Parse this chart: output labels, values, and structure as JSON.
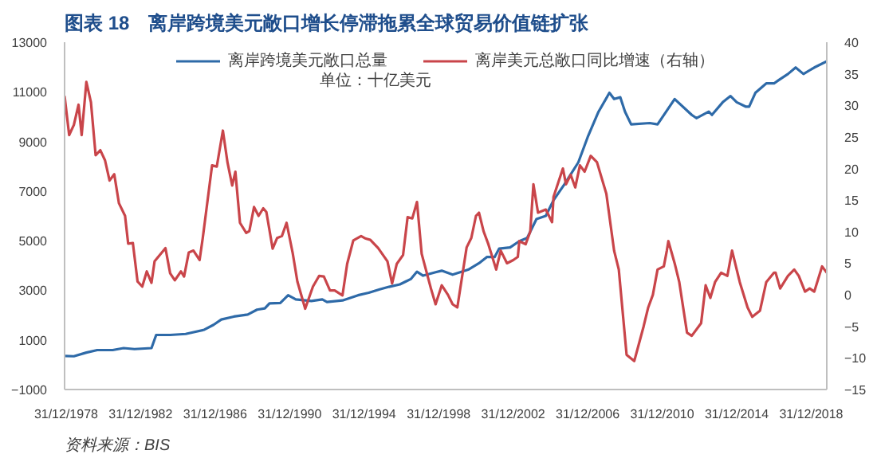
{
  "chart_data": {
    "type": "line",
    "title": "图表 18　离岸跨境美元敞口增长停滞拖累全球贸易价值链扩张",
    "annotations": [
      "单位：十亿美元",
      "资料来源：BIS"
    ],
    "xlim": [
      "1978-12",
      "2019-11"
    ],
    "xticks": [
      {
        "value": "1978-12-31",
        "label": "31/12/1978"
      },
      {
        "value": "1982-12-31",
        "label": "31/12/1982"
      },
      {
        "value": "1986-12-31",
        "label": "31/12/1986"
      },
      {
        "value": "1990-12-31",
        "label": "31/12/1990"
      },
      {
        "value": "1994-12-31",
        "label": "31/12/1994"
      },
      {
        "value": "1998-12-31",
        "label": "31/12/1998"
      },
      {
        "value": "2002-12-31",
        "label": "31/12/2002"
      },
      {
        "value": "2006-12-31",
        "label": "31/12/2006"
      },
      {
        "value": "2010-12-31",
        "label": "31/12/2010"
      },
      {
        "value": "2014-12-31",
        "label": "31/12/2014"
      },
      {
        "value": "2018-12-31",
        "label": "31/12/2018"
      }
    ],
    "ylim": [
      -1000,
      13000
    ],
    "yticks": [
      -1000,
      1000,
      3000,
      5000,
      7000,
      9000,
      11000,
      13000
    ],
    "y2lim": [
      -15,
      40
    ],
    "y2ticks": [
      -15,
      -10,
      -5,
      0,
      5,
      10,
      15,
      20,
      25,
      30,
      35,
      40
    ],
    "grid": false,
    "legend": "top",
    "series": [
      {
        "name": "离岸跨境美元敞口总量",
        "color": "#2e6aa8",
        "x": [
          "1978-12",
          "1979-06",
          "1980-02",
          "1980-09",
          "1981-07",
          "1982-02",
          "1982-09",
          "1983-08",
          "1983-11",
          "1984-08",
          "1985-06",
          "1986-06",
          "1986-12",
          "1987-05",
          "1988-01",
          "1988-10",
          "1989-04",
          "1989-09",
          "1989-12",
          "1990-07",
          "1990-12",
          "1991-05",
          "1992-03",
          "1992-10",
          "1993-01",
          "1993-11",
          "1994-09",
          "1995-04",
          "1995-11",
          "1996-05",
          "1996-12",
          "1997-07",
          "1997-11",
          "1998-03",
          "1998-11",
          "1999-03",
          "1999-10",
          "2000-08",
          "2001-03",
          "2001-08",
          "2002-01",
          "2002-04",
          "2002-11",
          "2003-05",
          "2003-10",
          "2004-04",
          "2004-10",
          "2005-03",
          "2005-10",
          "2006-07",
          "2007-01",
          "2007-08",
          "2008-03",
          "2008-06",
          "2008-10",
          "2009-01",
          "2009-05",
          "2010-05",
          "2010-10",
          "2011-09",
          "2012-08",
          "2012-11",
          "2013-07",
          "2013-09",
          "2014-04",
          "2014-09",
          "2015-01",
          "2015-07",
          "2015-09",
          "2016-01",
          "2016-08",
          "2017-01",
          "2017-04",
          "2017-10",
          "2018-03",
          "2018-08",
          "2019-03",
          "2019-11"
        ],
        "values": [
          350,
          340,
          490,
          590,
          590,
          670,
          630,
          670,
          1200,
          1200,
          1240,
          1410,
          1610,
          1820,
          1940,
          2020,
          2220,
          2270,
          2470,
          2490,
          2800,
          2630,
          2570,
          2630,
          2530,
          2590,
          2800,
          2900,
          3040,
          3140,
          3240,
          3450,
          3750,
          3590,
          3730,
          3790,
          3630,
          3830,
          4090,
          4340,
          4340,
          4680,
          4730,
          4980,
          5110,
          5870,
          6000,
          6630,
          7270,
          8160,
          9180,
          10200,
          10960,
          10710,
          10780,
          10200,
          9690,
          9740,
          9690,
          10710,
          10070,
          9940,
          10200,
          10070,
          10580,
          10830,
          10580,
          10400,
          10400,
          10960,
          11340,
          11340,
          11470,
          11720,
          11980,
          11720,
          11980,
          12230
        ]
      },
      {
        "name": "离岸美元总敞口同比增速（右轴）",
        "color": "#c9454a",
        "axis": "y2",
        "x": [
          "1978-12",
          "1979-03",
          "1979-06",
          "1979-09",
          "1979-11",
          "1980-02",
          "1980-05",
          "1980-08",
          "1980-11",
          "1981-02",
          "1981-05",
          "1981-08",
          "1981-11",
          "1982-03",
          "1982-05",
          "1982-08",
          "1982-11",
          "1983-02",
          "1983-05",
          "1983-08",
          "1983-10",
          "1984-02",
          "1984-05",
          "1984-08",
          "1984-11",
          "1985-03",
          "1985-05",
          "1985-08",
          "1985-11",
          "1986-03",
          "1986-05",
          "1986-11",
          "1987-02",
          "1987-06",
          "1987-09",
          "1987-12",
          "1988-02",
          "1988-05",
          "1988-09",
          "1988-11",
          "1989-02",
          "1989-05",
          "1989-08",
          "1989-10",
          "1990-02",
          "1990-05",
          "1990-08",
          "1990-11",
          "1991-03",
          "1991-06",
          "1991-11",
          "1992-04",
          "1992-08",
          "1992-11",
          "1993-03",
          "1993-06",
          "1993-11",
          "1994-02",
          "1994-06",
          "1994-11",
          "1995-02",
          "1995-05",
          "1995-10",
          "1996-04",
          "1996-07",
          "1996-10",
          "1997-02",
          "1997-05",
          "1997-08",
          "1997-11",
          "1998-02",
          "1998-08",
          "1998-11",
          "1999-03",
          "1999-07",
          "1999-10",
          "2000-01",
          "2000-07",
          "2000-10",
          "2001-01",
          "2001-03",
          "2001-06",
          "2001-09",
          "2002-02",
          "2002-05",
          "2002-09",
          "2003-01",
          "2003-04",
          "2003-05",
          "2003-09",
          "2003-12",
          "2004-02",
          "2004-05",
          "2004-10",
          "2005-02",
          "2005-03",
          "2005-09",
          "2005-11",
          "2006-02",
          "2006-05",
          "2006-08",
          "2006-11",
          "2007-03",
          "2007-07",
          "2008-01",
          "2008-06",
          "2008-09",
          "2009-02",
          "2009-07",
          "2010-01",
          "2010-04",
          "2010-07",
          "2010-10",
          "2011-02",
          "2011-04",
          "2011-05",
          "2011-09",
          "2011-12",
          "2012-05",
          "2012-08",
          "2013-02",
          "2013-05",
          "2013-08",
          "2013-11",
          "2014-03",
          "2014-07",
          "2014-10",
          "2015-03",
          "2015-08",
          "2015-11",
          "2016-04",
          "2016-08",
          "2017-01",
          "2017-02",
          "2017-05",
          "2017-10",
          "2018-02",
          "2018-05",
          "2018-09",
          "2018-12",
          "2019-03",
          "2019-08",
          "2019-11"
        ],
        "values": [
          31.5,
          25.3,
          26.9,
          30.1,
          25.3,
          33.7,
          30.5,
          22.1,
          22.9,
          21.3,
          18.1,
          19.1,
          14.5,
          12.5,
          8.1,
          8.2,
          2.1,
          1.3,
          3.7,
          1.9,
          5.3,
          6.5,
          7.4,
          3.4,
          2.3,
          3.7,
          2.9,
          6.7,
          7.0,
          5.5,
          8.9,
          20.5,
          20.3,
          26.0,
          20.9,
          17.3,
          19.5,
          11.4,
          9.8,
          10.1,
          13.9,
          12.5,
          13.7,
          13.1,
          7.3,
          9.0,
          9.3,
          11.4,
          6.6,
          2.1,
          -2.2,
          1.3,
          3.0,
          2.9,
          0.7,
          0.7,
          -0.1,
          4.9,
          8.6,
          9.3,
          8.9,
          8.7,
          7.4,
          5.3,
          1.8,
          4.9,
          6.3,
          12.3,
          12.1,
          14.7,
          6.5,
          1.0,
          -1.5,
          1.5,
          0,
          -1.5,
          -2,
          7.5,
          9,
          12.5,
          13,
          10,
          8,
          4,
          7,
          5,
          5.5,
          6,
          8.5,
          8,
          10,
          17.5,
          13,
          13.5,
          11.5,
          15.5,
          20,
          17.5,
          19,
          17,
          20.5,
          19.5,
          22,
          21,
          16,
          7,
          4,
          -9.5,
          -10.5,
          -5,
          -2,
          0,
          4,
          4.5,
          7,
          8.5,
          5,
          2,
          -6,
          -6.5,
          -4.5,
          1.5,
          -0.5,
          2,
          3.5,
          3,
          7,
          2,
          -2,
          -3.5,
          -2.5,
          2,
          3.5,
          3.5,
          1,
          3,
          4,
          3,
          0.5,
          1,
          0.5,
          4.5,
          3.5
        ]
      }
    ]
  }
}
